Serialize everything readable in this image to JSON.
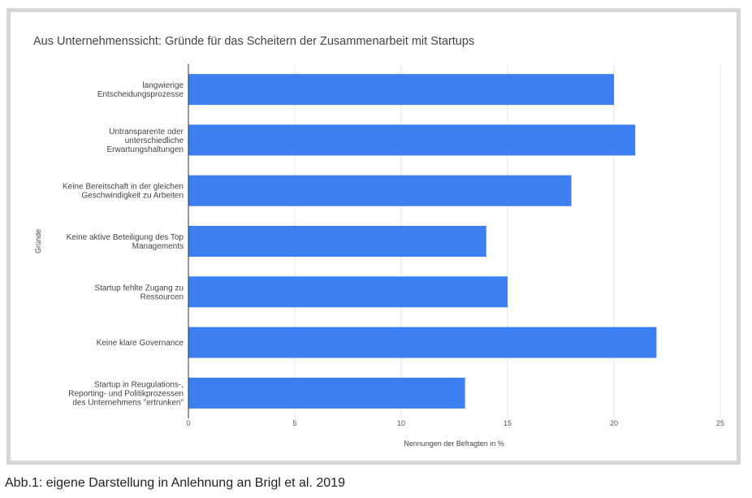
{
  "chart_data": {
    "type": "bar",
    "orientation": "horizontal",
    "title": "Aus Unternehmenssicht: Gründe für das Scheitern der Zusammenarbeit mit Startups",
    "xlabel": "Nennungen der Befragten in %",
    "ylabel": "Gründe",
    "categories": [
      [
        "langwierige",
        "Entscheidungsprozesse"
      ],
      [
        "Untransparente oder",
        "unterschiedliche",
        "Erwartungshaltungen"
      ],
      [
        "Keine Bereitschaft in der gleichen",
        "Geschwindigkeit zu Arbeiten"
      ],
      [
        "Keine aktive Beteiligung des Top",
        "Managements"
      ],
      [
        "Startup fehlte Zugang zu",
        "Ressourcen"
      ],
      [
        "Keine klare Governance"
      ],
      [
        "Startup in Reugulations-,",
        "Reporting- und Politikprozessen",
        "des Unternehmens \"ertrunken\""
      ]
    ],
    "values": [
      20,
      21,
      18,
      14,
      15,
      22,
      13
    ],
    "xlim": [
      0,
      25
    ],
    "xticks": [
      "0",
      "5",
      "10",
      "15",
      "20",
      "25"
    ],
    "grid": true,
    "bar_color": "#3d7ef0"
  },
  "caption": "Abb.1: eigene Darstellung in Anlehnung an Brigl et al. 2019"
}
